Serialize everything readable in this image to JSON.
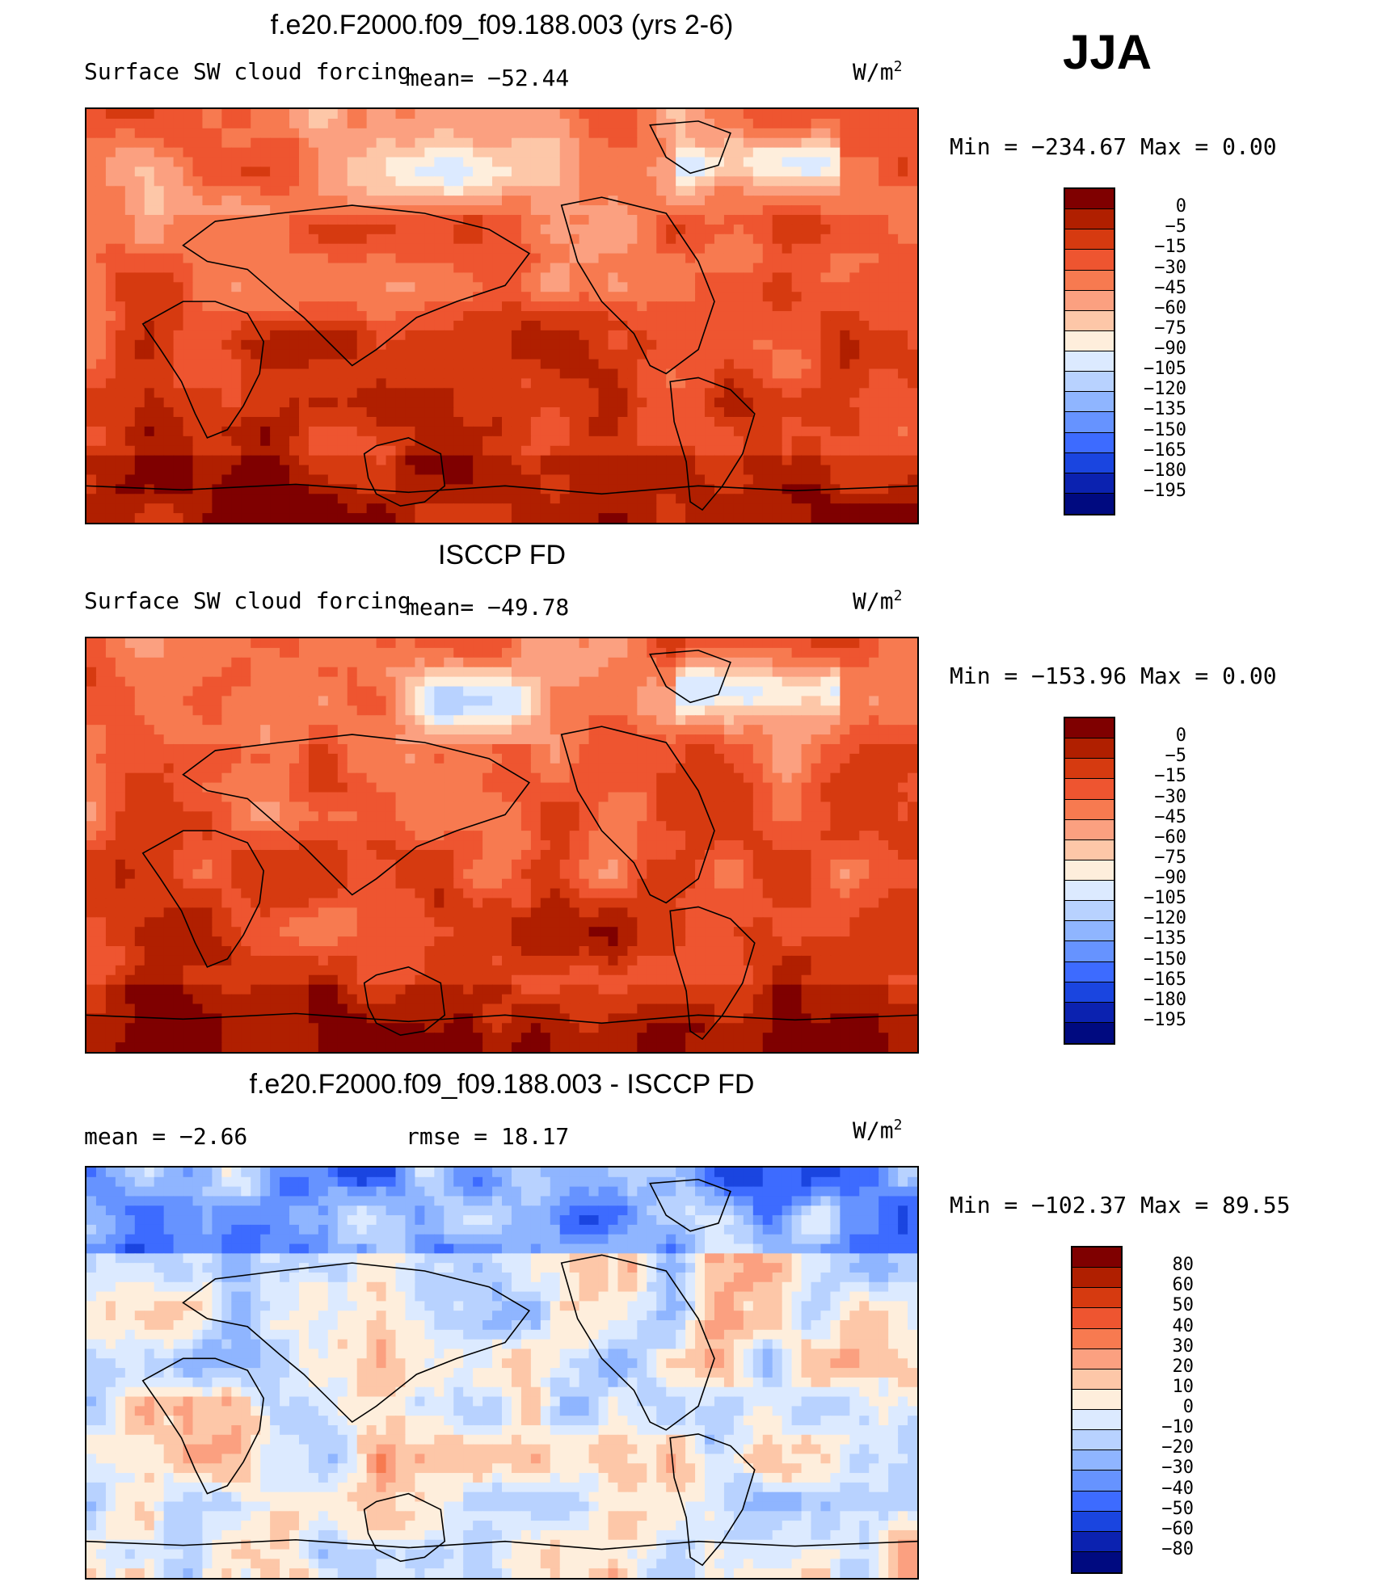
{
  "season": "JJA",
  "panels": [
    {
      "title": "f.e20.F2000.f09_f09.188.003 (yrs 2-6)",
      "left_label": "Surface SW cloud forcing",
      "mid_label": "mean= −52.44",
      "units": "W/m",
      "units_exp": "2",
      "minmax": "Min = −234.67 Max =   0.00",
      "field": "model"
    },
    {
      "title": "ISCCP FD",
      "left_label": "Surface SW cloud forcing",
      "mid_label": "mean= −49.78",
      "units": "W/m",
      "units_exp": "2",
      "minmax": "Min = −153.96 Max =   0.00",
      "field": "obs"
    },
    {
      "title": "f.e20.F2000.f09_f09.188.003 - ISCCP FD",
      "left_label": "mean =   −2.66",
      "mid_label": "rmse =   18.17",
      "units": "W/m",
      "units_exp": "2",
      "minmax": "Min = −102.37 Max =  89.55",
      "field": "diff"
    }
  ],
  "colorbars": [
    {
      "labels": [
        "0",
        "−5",
        "−15",
        "−30",
        "−45",
        "−60",
        "−75",
        "−90",
        "−105",
        "−120",
        "−135",
        "−150",
        "−165",
        "−180",
        "−195"
      ],
      "colors": [
        "#7f0000",
        "#b01f00",
        "#d63a10",
        "#ee5530",
        "#f77a50",
        "#fba080",
        "#fdc7a8",
        "#feeedc",
        "#dceaff",
        "#b8d2ff",
        "#8fb5ff",
        "#6693ff",
        "#3d6bff",
        "#1a45e0",
        "#0b22b0",
        "#000a80"
      ]
    },
    {
      "labels": [
        "0",
        "−5",
        "−15",
        "−30",
        "−45",
        "−60",
        "−75",
        "−90",
        "−105",
        "−120",
        "−135",
        "−150",
        "−165",
        "−180",
        "−195"
      ],
      "colors": [
        "#7f0000",
        "#b01f00",
        "#d63a10",
        "#ee5530",
        "#f77a50",
        "#fba080",
        "#fdc7a8",
        "#feeedc",
        "#dceaff",
        "#b8d2ff",
        "#8fb5ff",
        "#6693ff",
        "#3d6bff",
        "#1a45e0",
        "#0b22b0",
        "#000a80"
      ]
    },
    {
      "labels": [
        "80",
        "60",
        "50",
        "40",
        "30",
        "20",
        "10",
        "0",
        "−10",
        "−20",
        "−30",
        "−40",
        "−50",
        "−60",
        "−80"
      ],
      "colors": [
        "#7f0000",
        "#b01f00",
        "#d63a10",
        "#ee5530",
        "#f77a50",
        "#fba080",
        "#fdc7a8",
        "#feeedc",
        "#dceaff",
        "#b8d2ff",
        "#8fb5ff",
        "#6693ff",
        "#3d6bff",
        "#1a45e0",
        "#0b22b0",
        "#000a80"
      ]
    }
  ]
}
